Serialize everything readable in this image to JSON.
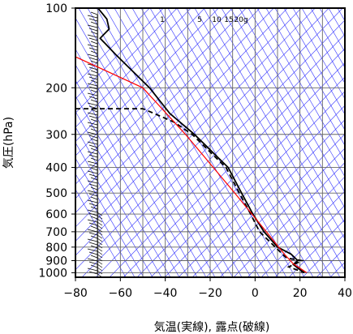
{
  "chart_data": {
    "type": "line",
    "title": "",
    "xlabel": "気温(実線), 露点(破線)",
    "ylabel": "気圧(hPa)",
    "xlim": [
      -80,
      40
    ],
    "ylim": [
      1040,
      100
    ],
    "y_scale": "log",
    "x_ticks": [
      "−80",
      "−60",
      "−40",
      "−20",
      "0",
      "20",
      "40"
    ],
    "x_tick_values": [
      -80,
      -60,
      -40,
      -20,
      0,
      20,
      40
    ],
    "y_ticks": [
      "100",
      "200",
      "300",
      "400",
      "500",
      "600",
      "700",
      "800",
      "900",
      "1000"
    ],
    "y_tick_values": [
      100,
      200,
      300,
      400,
      500,
      600,
      700,
      800,
      900,
      1000
    ],
    "mixing_ratio_labels": [
      "1",
      "5",
      "10",
      "15",
      "20g"
    ],
    "series": [
      {
        "style": "solid",
        "color": "#000000",
        "points": [
          [
            -70,
            100
          ],
          [
            -66,
            110
          ],
          [
            -65,
            120
          ],
          [
            -69,
            130
          ],
          [
            -62,
            150
          ],
          [
            -47,
            200
          ],
          [
            -38,
            250
          ],
          [
            -27,
            300
          ],
          [
            -19,
            350
          ],
          [
            -12,
            400
          ],
          [
            -6,
            500
          ],
          [
            -1,
            600
          ],
          [
            4,
            700
          ],
          [
            10,
            800
          ],
          [
            16,
            850
          ],
          [
            19,
            900
          ],
          [
            17,
            930
          ],
          [
            19,
            960
          ],
          [
            22,
            1000
          ]
        ]
      },
      {
        "style": "dashed",
        "color": "#000000",
        "points": [
          [
            -80,
            240
          ],
          [
            -50,
            240
          ],
          [
            -45,
            250
          ],
          [
            -36,
            270
          ],
          [
            -28,
            300
          ],
          [
            -20,
            350
          ],
          [
            -13,
            400
          ],
          [
            -7,
            500
          ],
          [
            -2,
            600
          ],
          [
            2,
            700
          ],
          [
            9,
            800
          ],
          [
            14,
            880
          ],
          [
            21,
            900
          ],
          [
            15,
            950
          ],
          [
            22,
            1000
          ]
        ]
      },
      {
        "style": "solid",
        "color": "#ff0000",
        "points": [
          [
            -82,
            150
          ],
          [
            -50,
            200
          ],
          [
            -31,
            300
          ],
          [
            -9,
            500
          ],
          [
            5,
            700
          ],
          [
            13,
            850
          ],
          [
            17,
            925
          ],
          [
            23,
            1000
          ]
        ]
      }
    ]
  }
}
